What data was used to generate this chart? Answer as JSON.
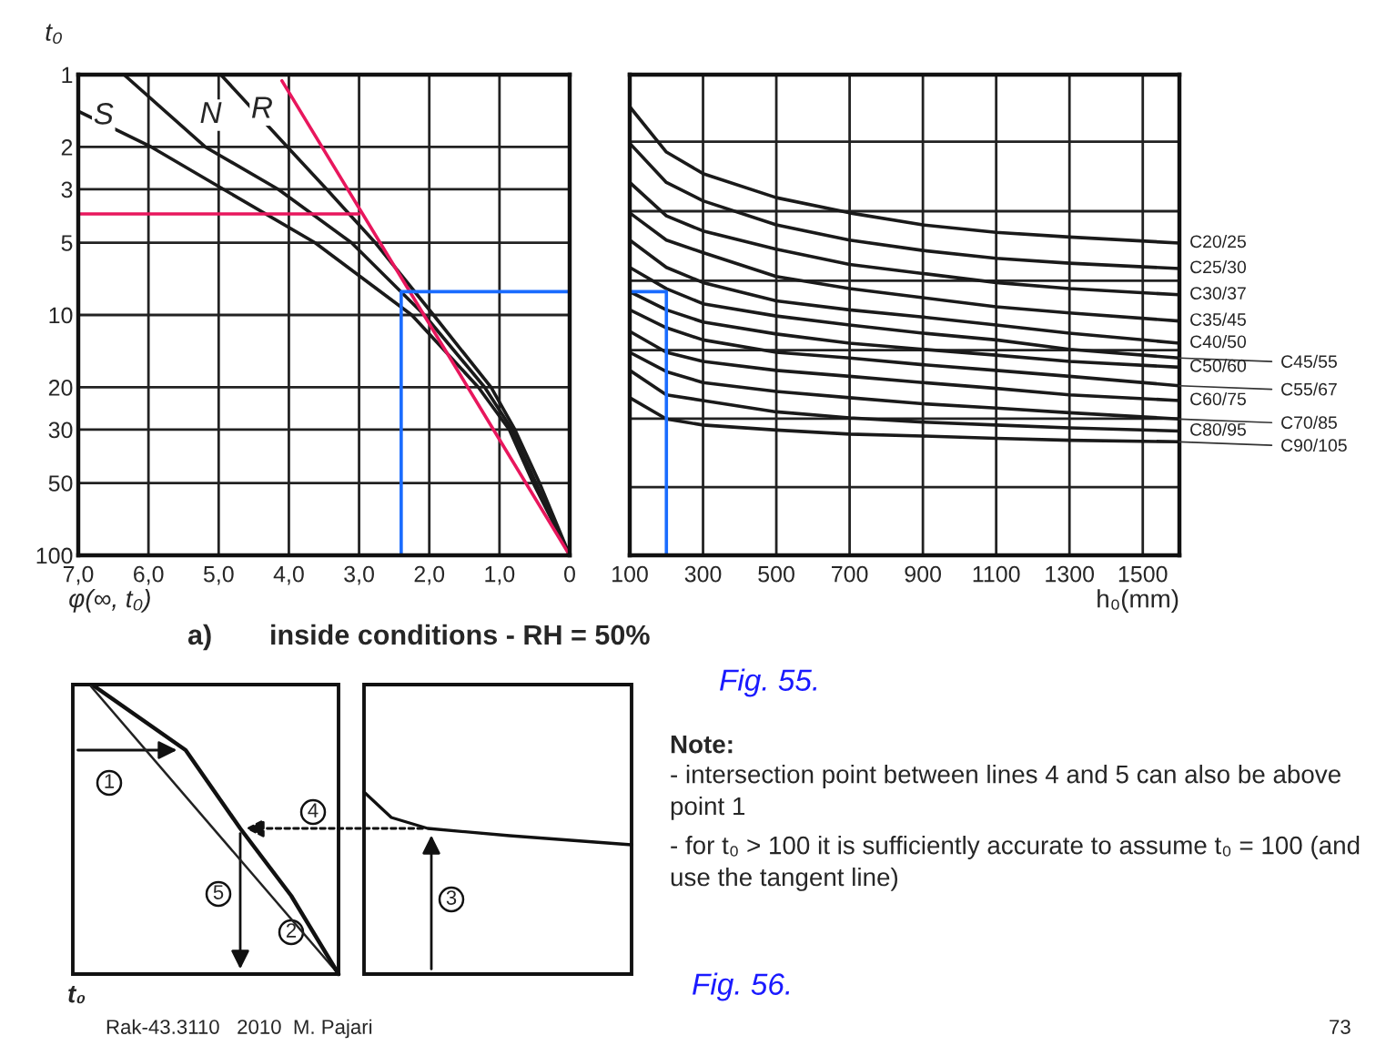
{
  "chart_data": [
    {
      "type": "line",
      "xlabel": "φ(∞, t₀)",
      "ylabel": "t₀",
      "log": "y",
      "grid": true,
      "xlim": [
        7,
        0
      ],
      "xticks": [
        {
          "value": 7,
          "label": "7,0"
        },
        {
          "value": 6,
          "label": "6,0"
        },
        {
          "value": 5,
          "label": "5,0"
        },
        {
          "value": 4,
          "label": "4,0"
        },
        {
          "value": 3,
          "label": "3,0"
        },
        {
          "value": 2,
          "label": "2,0"
        },
        {
          "value": 1,
          "label": "1,0"
        },
        0
      ],
      "ylim": [
        100,
        1
      ],
      "yticks": [
        1,
        2,
        3,
        5,
        10,
        20,
        30,
        50,
        100
      ],
      "series": [
        {
          "name": "S",
          "color": "#1a1a1a",
          "x": [
            7,
            5.96,
            4.93,
            3.63,
            2.25,
            1.3,
            0.86,
            0.52,
            0
          ],
          "values": [
            1.42,
            2,
            3,
            5,
            10,
            20,
            30,
            50,
            100
          ]
        },
        {
          "name": "N",
          "color": "#1a1a1a",
          "x": [
            6.35,
            5.19,
            4.15,
            3.11,
            2.07,
            1.21,
            0.82,
            0.48,
            0
          ],
          "values": [
            1,
            2,
            3,
            5,
            10,
            20,
            30,
            50,
            100
          ]
        },
        {
          "name": "R",
          "color": "#1a1a1a",
          "x": [
            4.97,
            4.02,
            3.46,
            2.77,
            1.94,
            1.12,
            0.78,
            0.43,
            0
          ],
          "values": [
            1,
            2,
            3,
            5,
            10,
            20,
            30,
            50,
            100
          ]
        },
        {
          "color": "#e8175d",
          "x": [
            4.1,
            0
          ],
          "values": [
            1.06,
            100
          ]
        },
        {
          "color": "#e8175d",
          "x": [
            7,
            3.0
          ],
          "values": [
            3.8,
            3.8
          ]
        },
        {
          "color": "#1a6cff",
          "x": [
            0,
            2.4,
            2.4
          ],
          "values": [
            8,
            8,
            100
          ]
        }
      ],
      "annotations": [
        "a)",
        "inside conditions - RH = 50%",
        "Fig. 55."
      ]
    },
    {
      "type": "line",
      "xlabel": "h₀(mm)",
      "log": "y",
      "grid": true,
      "tick_labels": "x",
      "xlim": [
        100,
        1600
      ],
      "xticks": [
        100,
        300,
        500,
        700,
        900,
        1100,
        1300,
        1500
      ],
      "ylim": [
        100,
        1
      ],
      "yticks": [
        {
          "value": 1.9,
          "label": null
        },
        {
          "value": 3.7,
          "label": null
        },
        {
          "value": 7.2,
          "label": null
        },
        {
          "value": 14,
          "label": null
        },
        {
          "value": 27,
          "label": null
        },
        {
          "value": 52,
          "label": null
        }
      ],
      "x": [
        100,
        200,
        300,
        500,
        700,
        900,
        1100,
        1300,
        1600
      ],
      "series": [
        {
          "name": "C20/25",
          "color": "#1a1a1a",
          "values": [
            1.36,
            2.1,
            2.58,
            3.25,
            3.76,
            4.22,
            4.53,
            4.74,
            5.02
          ]
        },
        {
          "name": "C25/30",
          "color": "#1a1a1a",
          "values": [
            1.93,
            2.81,
            3.35,
            4.22,
            4.88,
            5.39,
            5.81,
            6.09,
            6.41
          ]
        },
        {
          "name": "C30/37",
          "color": "#1a1a1a",
          "values": [
            2.81,
            3.87,
            4.47,
            5.33,
            6.16,
            6.72,
            7.33,
            7.77,
            8.24
          ]
        },
        {
          "name": "C35/45",
          "color": "#1a1a1a",
          "values": [
            3.76,
            4.88,
            5.5,
            6.92,
            7.77,
            8.47,
            9.25,
            9.8,
            10.6
          ]
        },
        {
          "name": "C40/50",
          "color": "#1a1a1a",
          "values": [
            4.88,
            6.34,
            7.33,
            8.73,
            9.52,
            10.2,
            11.0,
            11.9,
            13.1
          ]
        },
        {
          "name": "C45/55",
          "color": "#1a1a1a",
          "values": [
            6.34,
            7.77,
            8.98,
            10.1,
            11.0,
            11.9,
            12.7,
            13.9,
            15.1
          ]
        },
        {
          "name": "C50/60",
          "color": "#1a1a1a",
          "values": [
            8.0,
            9.52,
            10.7,
            12.0,
            13.1,
            13.9,
            14.7,
            15.6,
            16.5
          ]
        },
        {
          "name": "C55/67",
          "color": "#1a1a1a",
          "values": [
            9.52,
            11.3,
            12.7,
            14.3,
            15.1,
            16.1,
            17.0,
            18.0,
            19.7
          ]
        },
        {
          "name": "C60/75",
          "color": "#1a1a1a",
          "values": [
            11.7,
            14.3,
            15.6,
            17.0,
            18.0,
            19.1,
            20.2,
            21.5,
            22.7
          ]
        },
        {
          "name": "C70/85",
          "color": "#1a1a1a",
          "values": [
            14.3,
            17.2,
            19.1,
            20.8,
            22.1,
            23.4,
            24.4,
            25.5,
            27.1
          ]
        },
        {
          "name": "C80/95",
          "color": "#1a1a1a",
          "values": [
            17.0,
            21.5,
            22.7,
            25.3,
            26.8,
            27.9,
            28.7,
            29.5,
            30.4
          ]
        },
        {
          "name": "C90/105",
          "color": "#1a1a1a",
          "values": [
            22.1,
            27.1,
            28.7,
            30.1,
            31.3,
            31.9,
            32.6,
            33.2,
            33.7
          ]
        },
        {
          "color": "#1a6cff",
          "x": [
            100,
            200,
            200
          ],
          "values": [
            8,
            8,
            100
          ]
        }
      ]
    },
    {
      "type": "other",
      "annotations": [
        "1",
        "2",
        "3",
        "4",
        "5",
        "t₀",
        "Note:",
        "- intersection point between lines 4 and 5 can also be above point 1",
        "- for t₀ > 100 it is sufficiently accurate to assume t₀ = 100 (and use the tangent line)",
        "Fig. 56.",
        "Rak-43.3110   2010  M. Pajari",
        "73"
      ]
    }
  ]
}
